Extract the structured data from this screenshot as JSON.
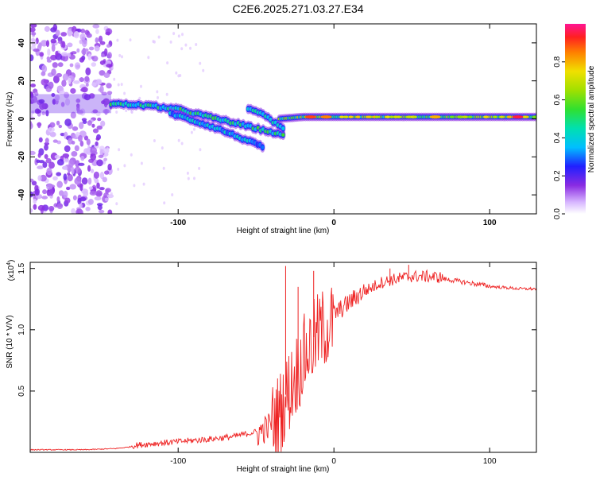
{
  "title": "C2E6.2025.271.03.27.E34",
  "chart_data": [
    {
      "type": "heatmap",
      "name": "spectrogram",
      "xlabel": "Height of straight line (km)",
      "ylabel": "Frequency (Hz)",
      "xlim": [
        -195,
        130
      ],
      "ylim": [
        -50,
        50
      ],
      "xticks": [
        -100,
        0,
        100
      ],
      "yticks": [
        -40,
        -20,
        0,
        20,
        40
      ],
      "colorbar": {
        "label": "Normalized spectral amplitude",
        "range": [
          0,
          1
        ],
        "ticks": [
          0.0,
          0.2,
          0.4,
          0.6,
          0.8
        ]
      },
      "noise_region": {
        "x_start": -195,
        "x_end": -143,
        "freq_range": [
          -50,
          50
        ],
        "amplitude": 0.1
      },
      "tracks": [
        {
          "name": "main-track-descending",
          "x": [
            -143,
            -120,
            -100,
            -80,
            -60,
            -40,
            -32
          ],
          "freq": [
            8,
            7,
            5,
            1,
            -3,
            -7,
            -9
          ],
          "amplitude": 0.45
        },
        {
          "name": "secondary-track-descending",
          "x": [
            -105,
            -90,
            -75,
            -60,
            -45
          ],
          "freq": [
            3,
            -1,
            -5,
            -10,
            -15
          ],
          "amplitude": 0.35
        },
        {
          "name": "upper-branch",
          "x": [
            -55,
            -45,
            -38,
            -32
          ],
          "freq": [
            5,
            2,
            -2,
            -6
          ],
          "amplitude": 0.4
        },
        {
          "name": "carrier-line",
          "x": [
            -35,
            -20,
            0,
            20,
            50,
            80,
            100,
            130
          ],
          "freq": [
            0,
            1,
            1,
            1,
            1,
            1,
            1,
            1
          ],
          "amplitude": 0.55
        }
      ],
      "peaks": [
        {
          "x": -15,
          "freq": 1,
          "amplitude": 0.9
        },
        {
          "x": -5,
          "freq": 1,
          "amplitude": 0.85
        },
        {
          "x": 65,
          "freq": 1,
          "amplitude": 0.8
        },
        {
          "x": 118,
          "freq": 1,
          "amplitude": 0.95
        }
      ]
    },
    {
      "type": "line",
      "name": "snr",
      "xlabel": "Height of straight line (km)",
      "ylabel": "SNR (10 * V/V)",
      "y_scale_label": "(x10",
      "y_scale_exp": "4",
      "xlim": [
        -195,
        130
      ],
      "ylim": [
        0,
        1.55
      ],
      "xticks": [
        -100,
        0,
        100
      ],
      "yticks": [
        0.5,
        1.0,
        1.5
      ],
      "ytick_labels": [
        "0.5",
        "1.0",
        "1.5"
      ],
      "line_color": "#ee2222",
      "envelope": {
        "x": [
          -195,
          -160,
          -140,
          -120,
          -100,
          -80,
          -65,
          -50,
          -42,
          -35,
          -30,
          -25,
          -20,
          -15,
          -10,
          -5,
          0,
          10,
          20,
          30,
          40,
          50,
          60,
          70,
          80,
          90,
          100,
          110,
          120,
          130
        ],
        "y": [
          0.02,
          0.02,
          0.03,
          0.06,
          0.08,
          0.1,
          0.12,
          0.16,
          0.22,
          0.35,
          0.5,
          0.65,
          0.8,
          0.9,
          1.0,
          1.06,
          1.1,
          1.2,
          1.3,
          1.37,
          1.4,
          1.42,
          1.42,
          1.41,
          1.39,
          1.37,
          1.35,
          1.34,
          1.33,
          1.33
        ]
      },
      "spikes": [
        {
          "x": -31,
          "y": 1.52
        },
        {
          "x": -23,
          "y": 1.35
        },
        {
          "x": -13,
          "y": 1.48
        },
        {
          "x": 48,
          "y": 1.53
        },
        {
          "x": 36,
          "y": 1.5
        }
      ]
    }
  ]
}
